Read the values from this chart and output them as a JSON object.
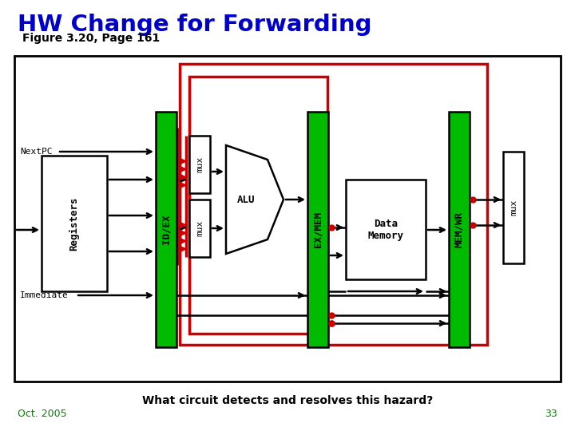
{
  "title": "HW Change for Forwarding",
  "subtitle": "Figure 3.20, Page 161",
  "title_color": "#0000CC",
  "subtitle_color": "#000000",
  "bottom_text": "What circuit detects and resolves this hazard?",
  "bottom_left": "Oct. 2005",
  "bottom_right": "33",
  "bottom_text_color": "#000000",
  "bottom_note_color": "#008800",
  "green_color": "#00BB00",
  "red_color": "#CC0000",
  "black_color": "#000000",
  "white_color": "#FFFFFF",
  "lw_black": 1.8,
  "lw_red": 2.5,
  "lw_border": 2.0
}
